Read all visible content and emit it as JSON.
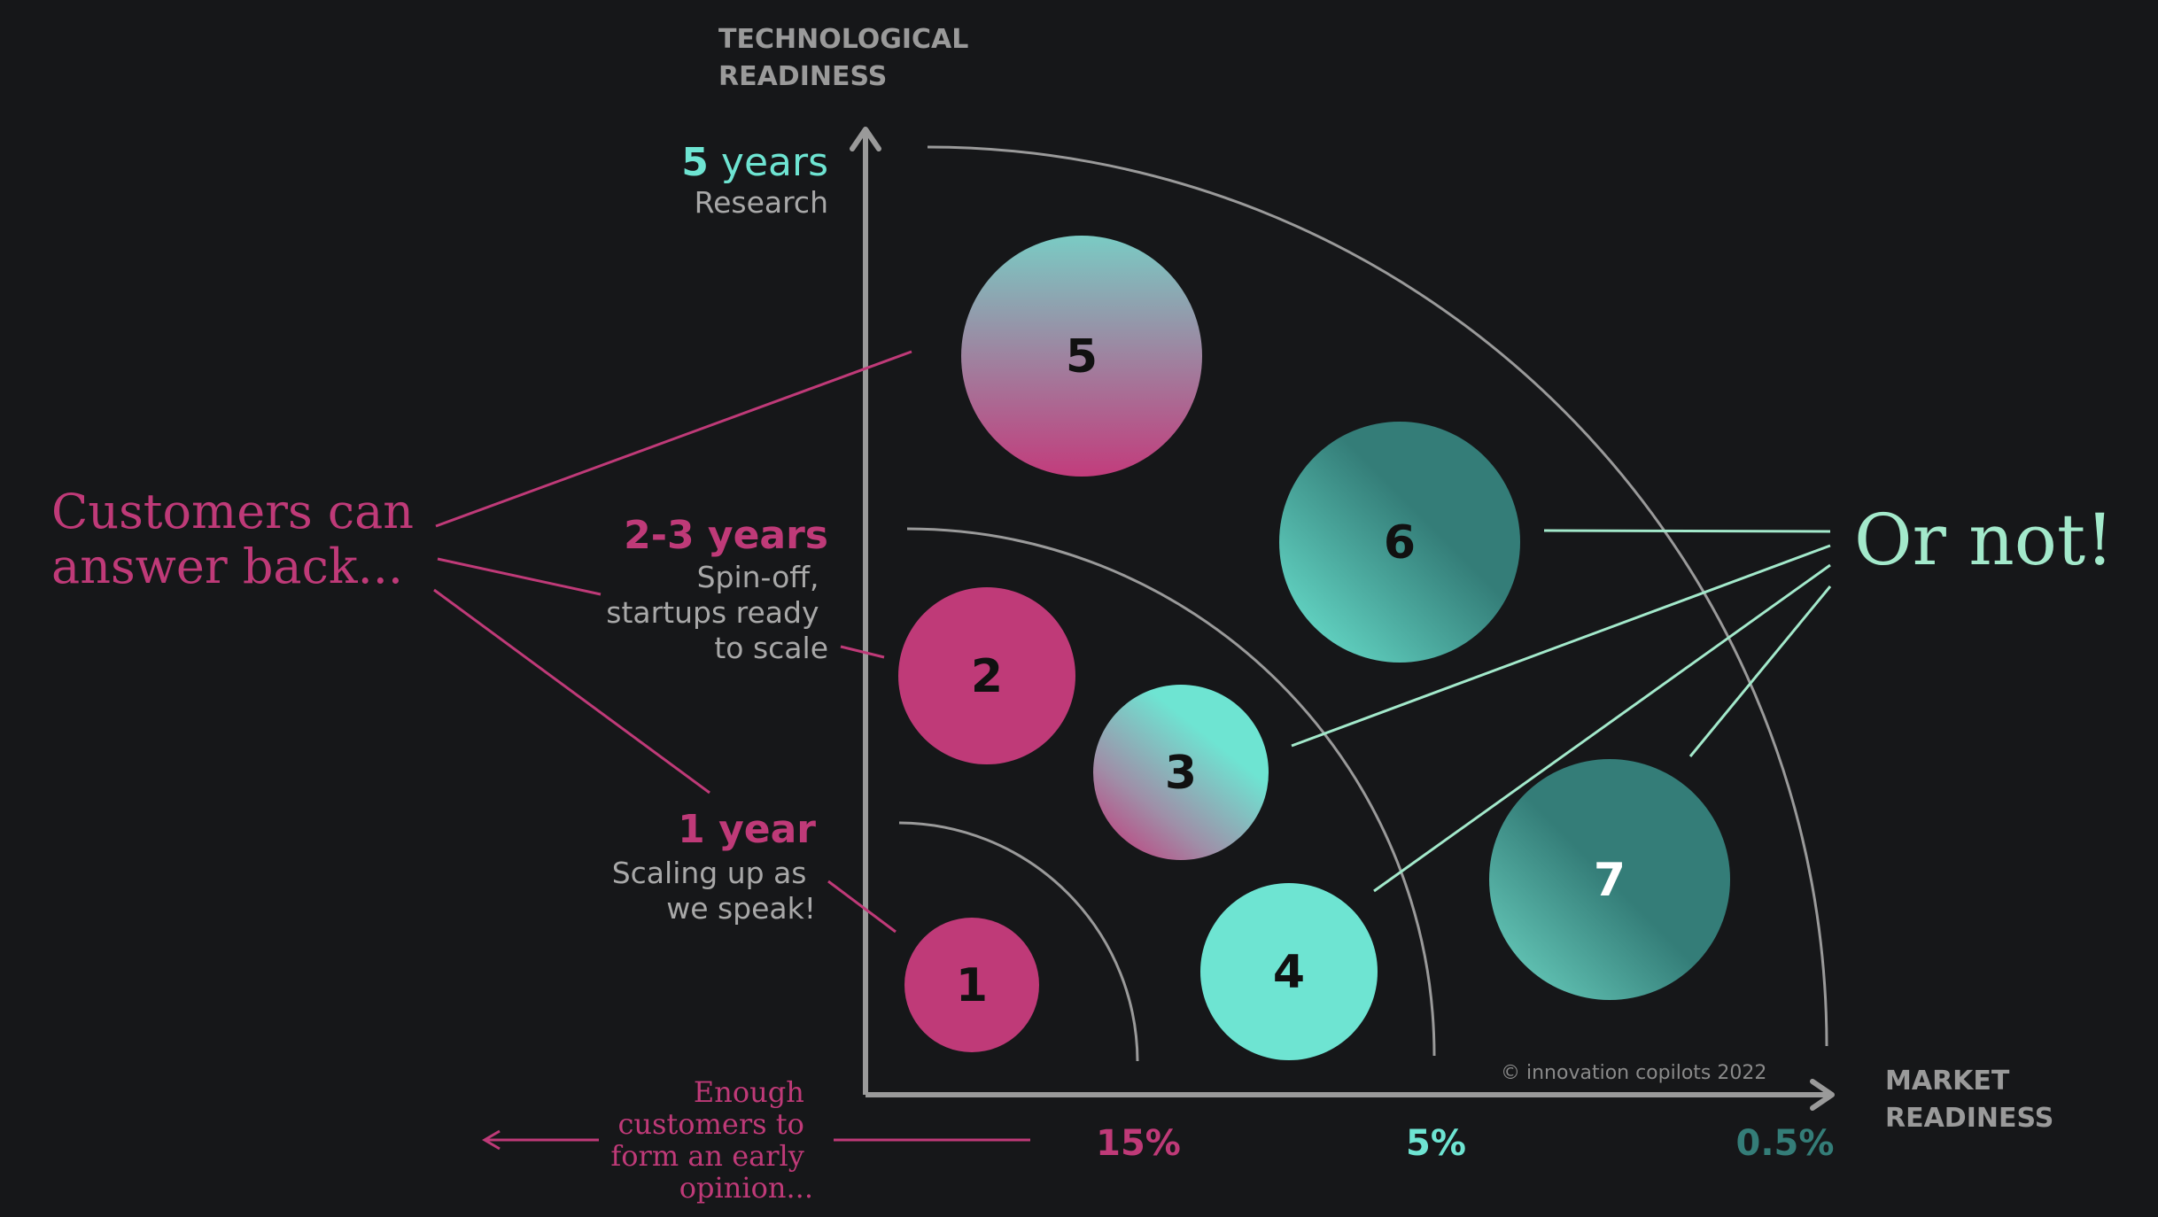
{
  "axes": {
    "y_label_line1": "TECHNOLOGICAL",
    "y_label_line2": "READINESS",
    "x_label_line1": "MARKET",
    "x_label_line2": "READINESS"
  },
  "levels": {
    "five_years": {
      "number": "5",
      "unit": " years",
      "desc": "Research"
    },
    "two_three_years": {
      "title": "2-3 years",
      "desc_line1": "Spin-off,",
      "desc_line2": "startups ready",
      "desc_line3": "to scale"
    },
    "one_year": {
      "title": "1 year",
      "desc_line1": "Scaling up as",
      "desc_line2": "we speak!"
    }
  },
  "left_note": {
    "line1": "Customers can",
    "line2": "answer back..."
  },
  "right_note": "Or not!",
  "bottom_note": {
    "line1": "Enough",
    "line2": "customers to",
    "line3": "form an early",
    "line4": "opinion..."
  },
  "percentages": {
    "p15": "15%",
    "p5": "5%",
    "p05": "0.5%"
  },
  "bubbles": {
    "b1": "1",
    "b2": "2",
    "b3": "3",
    "b4": "4",
    "b5": "5",
    "b6": "6",
    "b7": "7"
  },
  "copyright": "© innovation copilots 2022",
  "colors": {
    "background": "#161719",
    "pink": "#bf3a78",
    "aqua": "#6ee4d2",
    "teal": "#347d78",
    "mint": "#a3e9cb",
    "axis": "#9a9a9a"
  }
}
